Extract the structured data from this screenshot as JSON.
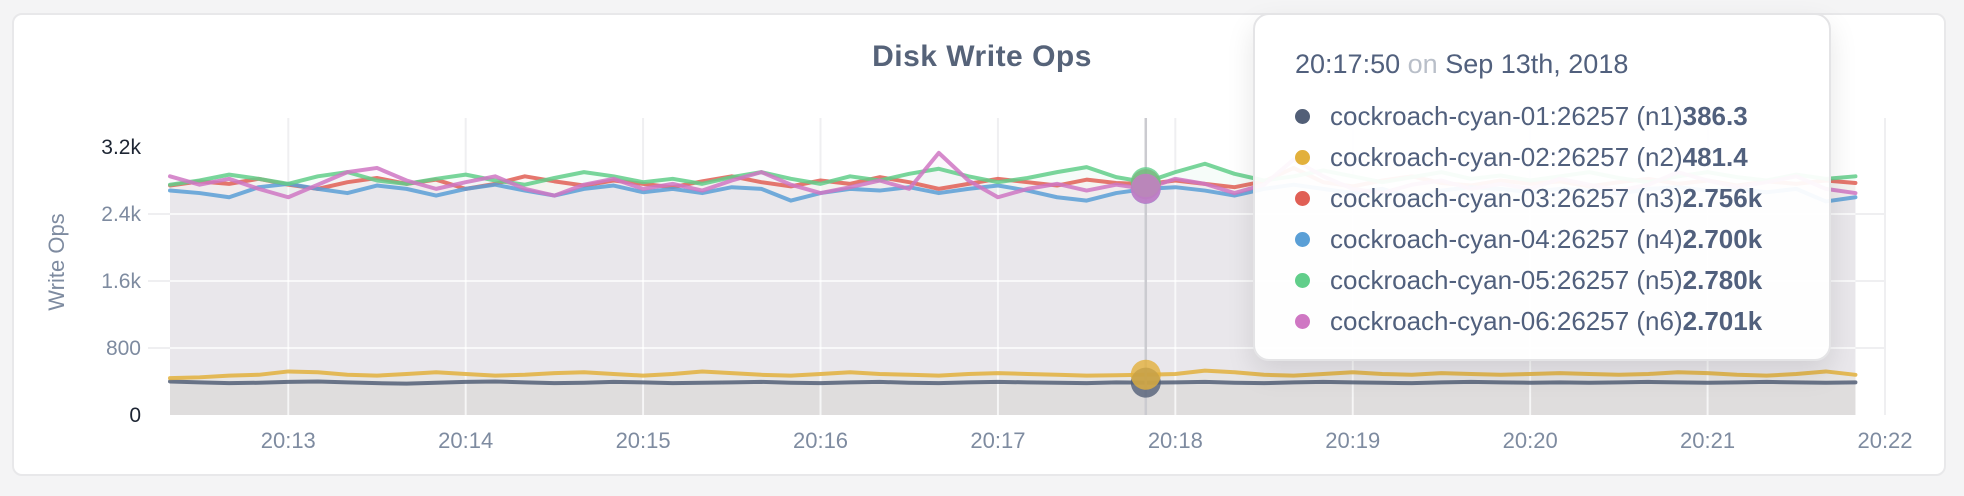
{
  "chart_data": {
    "type": "line",
    "title": "Disk Write Ops",
    "ylabel": "Write Ops",
    "ylim": [
      0,
      3200
    ],
    "yticks": [
      {
        "label": "3.2k",
        "value": 3200,
        "emph": true
      },
      {
        "label": "2.4k",
        "value": 2400,
        "emph": false
      },
      {
        "label": "1.6k",
        "value": 1600,
        "emph": false
      },
      {
        "label": "800",
        "value": 800,
        "emph": false
      },
      {
        "label": "0",
        "value": 0,
        "emph": true
      }
    ],
    "ygrid": [
      800,
      1600,
      2400
    ],
    "xticks": [
      "20:13",
      "20:14",
      "20:15",
      "20:16",
      "20:17",
      "20:18",
      "20:19",
      "20:20",
      "20:21",
      "20:22"
    ],
    "x_range": [
      "20:12:20",
      "20:22:00"
    ],
    "sample_interval_s": 10,
    "grid": true,
    "legend_position": "tooltip",
    "hover": {
      "index": 33,
      "time": "20:17:50"
    },
    "series": [
      {
        "name": "cockroach-cyan-01:26257 (n1)",
        "color": "#525f77",
        "values": [
          400,
          390,
          380,
          385,
          395,
          400,
          390,
          380,
          375,
          385,
          395,
          400,
          390,
          380,
          385,
          395,
          390,
          380,
          385,
          390,
          395,
          385,
          380,
          390,
          395,
          385,
          380,
          390,
          395,
          390,
          385,
          380,
          390,
          386,
          390,
          395,
          385,
          380,
          390,
          395,
          390,
          385,
          380,
          390,
          395,
          390,
          385,
          390,
          385,
          390,
          395,
          390,
          385,
          390,
          395,
          390,
          385,
          390
        ]
      },
      {
        "name": "cockroach-cyan-02:26257 (n2)",
        "color": "#e2b03c",
        "values": [
          440,
          450,
          470,
          480,
          520,
          510,
          480,
          470,
          490,
          510,
          490,
          470,
          480,
          500,
          510,
          490,
          470,
          490,
          520,
          500,
          480,
          470,
          490,
          510,
          490,
          480,
          470,
          490,
          500,
          490,
          480,
          470,
          475,
          481,
          490,
          530,
          510,
          480,
          470,
          490,
          510,
          490,
          480,
          500,
          490,
          480,
          490,
          500,
          490,
          480,
          490,
          510,
          500,
          480,
          470,
          490,
          520,
          480
        ]
      },
      {
        "name": "cockroach-cyan-03:26257 (n3)",
        "color": "#e05f55",
        "values": [
          2740,
          2790,
          2760,
          2820,
          2750,
          2700,
          2780,
          2830,
          2760,
          2810,
          2700,
          2760,
          2850,
          2790,
          2740,
          2800,
          2760,
          2720,
          2790,
          2850,
          2780,
          2730,
          2800,
          2760,
          2840,
          2780,
          2700,
          2760,
          2820,
          2780,
          2740,
          2810,
          2770,
          2756,
          2800,
          2760,
          2720,
          2790,
          2950,
          2780,
          2730,
          2800,
          2850,
          2770,
          2740,
          2800,
          2760,
          2790,
          2730,
          2780,
          2820,
          2760,
          2800,
          2740,
          2790,
          2760,
          2800,
          2770
        ]
      },
      {
        "name": "cockroach-cyan-04:26257 (n4)",
        "color": "#5a9fd6",
        "values": [
          2680,
          2650,
          2600,
          2720,
          2760,
          2700,
          2650,
          2740,
          2700,
          2620,
          2700,
          2750,
          2680,
          2620,
          2700,
          2740,
          2660,
          2700,
          2650,
          2720,
          2700,
          2560,
          2650,
          2700,
          2680,
          2720,
          2650,
          2700,
          2740,
          2680,
          2600,
          2560,
          2650,
          2700,
          2720,
          2680,
          2620,
          2700,
          2750,
          2700,
          2650,
          2700,
          2600,
          2680,
          2720,
          2700,
          2660,
          2700,
          2680,
          2640,
          2700,
          2720,
          2680,
          2700,
          2660,
          2700,
          2550,
          2600
        ]
      },
      {
        "name": "cockroach-cyan-05:26257 (n5)",
        "color": "#61ce8a",
        "values": [
          2750,
          2800,
          2870,
          2820,
          2760,
          2850,
          2900,
          2800,
          2760,
          2820,
          2870,
          2800,
          2750,
          2830,
          2900,
          2850,
          2780,
          2820,
          2760,
          2840,
          2900,
          2820,
          2760,
          2850,
          2800,
          2880,
          2940,
          2850,
          2780,
          2830,
          2900,
          2960,
          2840,
          2780,
          2900,
          3000,
          2880,
          2800,
          2850,
          2920,
          2850,
          2780,
          2840,
          2900,
          2820,
          2860,
          2800,
          2850,
          2900,
          2830,
          2780,
          2850,
          2900,
          2840,
          2800,
          2870,
          2820,
          2850
        ]
      },
      {
        "name": "cockroach-cyan-06:26257 (n6)",
        "color": "#cf77c3",
        "values": [
          2850,
          2750,
          2820,
          2700,
          2600,
          2750,
          2900,
          2950,
          2800,
          2700,
          2780,
          2850,
          2700,
          2620,
          2750,
          2820,
          2700,
          2760,
          2680,
          2800,
          2900,
          2750,
          2650,
          2720,
          2800,
          2700,
          3130,
          2800,
          2600,
          2700,
          2760,
          2680,
          2750,
          2701,
          2820,
          2760,
          2650,
          2750,
          3050,
          2850,
          2700,
          2650,
          2750,
          2800,
          2700,
          2760,
          2700,
          2820,
          2750,
          2680,
          2750,
          2900,
          2800,
          2720,
          2780,
          2850,
          2700,
          2650
        ]
      }
    ]
  },
  "tooltip": {
    "time": "20:17:50",
    "separator": "on",
    "date": "Sep 13th, 2018",
    "series": [
      {
        "name": "cockroach-cyan-01:26257 (n1)",
        "value": "386.3",
        "color": "#525f77"
      },
      {
        "name": "cockroach-cyan-02:26257 (n2)",
        "value": "481.4",
        "color": "#e2b03c"
      },
      {
        "name": "cockroach-cyan-03:26257 (n3)",
        "value": "2.756k",
        "color": "#e05f55"
      },
      {
        "name": "cockroach-cyan-04:26257 (n4)",
        "value": "2.700k",
        "color": "#5a9fd6"
      },
      {
        "name": "cockroach-cyan-05:26257 (n5)",
        "value": "2.780k",
        "color": "#61ce8a"
      },
      {
        "name": "cockroach-cyan-06:26257 (n6)",
        "value": "2.701k",
        "color": "#cf77c3"
      }
    ]
  }
}
